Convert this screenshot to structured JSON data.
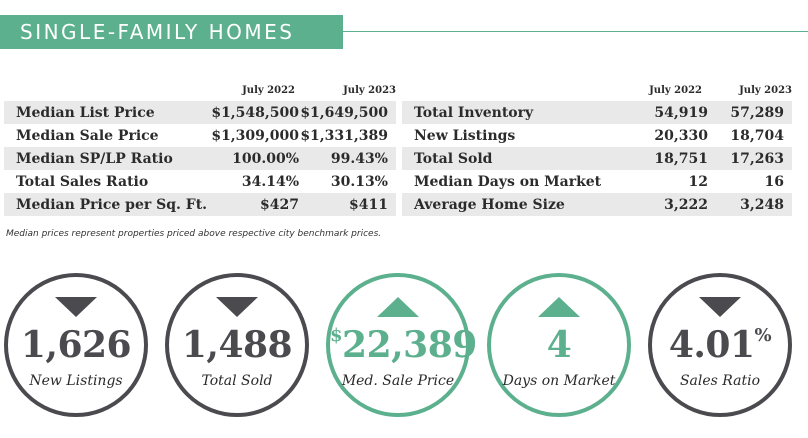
{
  "header": {
    "title": "SINGLE-FAMILY HOMES"
  },
  "left_table": {
    "col1": "July 2022",
    "col2": "July 2023",
    "rows": [
      {
        "label": "Median List Price",
        "v2022": "$1,548,500",
        "v2023": "$1,649,500"
      },
      {
        "label": "Median Sale Price",
        "v2022": "$1,309,000",
        "v2023": "$1,331,389"
      },
      {
        "label": "Median SP/LP Ratio",
        "v2022": "100.00%",
        "v2023": "99.43%"
      },
      {
        "label": "Total Sales Ratio",
        "v2022": "34.14%",
        "v2023": "30.13%"
      },
      {
        "label": "Median Price per Sq. Ft.",
        "v2022": "$427",
        "v2023": "$411"
      }
    ]
  },
  "right_table": {
    "col1": "July 2022",
    "col2": "July 2023",
    "rows": [
      {
        "label": "Total Inventory",
        "v2022": "54,919",
        "v2023": "57,289"
      },
      {
        "label": "New Listings",
        "v2022": "20,330",
        "v2023": "18,704"
      },
      {
        "label": "Total Sold",
        "v2022": "18,751",
        "v2023": "17,263"
      },
      {
        "label": "Median Days on Market",
        "v2022": "12",
        "v2023": "16"
      },
      {
        "label": "Average Home Size",
        "v2022": "3,222",
        "v2023": "3,248"
      }
    ]
  },
  "footnote": "Median prices represent properties priced above respective city benchmark prices.",
  "indicators": [
    {
      "value": "1,626",
      "prefix": "",
      "suffix": "",
      "caption": "New Listings",
      "direction": "down",
      "color": "#4a4a4f"
    },
    {
      "value": "1,488",
      "prefix": "",
      "suffix": "",
      "caption": "Total Sold",
      "direction": "down",
      "color": "#4a4a4f"
    },
    {
      "value": "22,389",
      "prefix": "$",
      "suffix": "",
      "caption": "Med. Sale Price",
      "direction": "up",
      "color": "#5cb08e"
    },
    {
      "value": "4",
      "prefix": "",
      "suffix": "",
      "caption": "Days on Market",
      "direction": "up",
      "color": "#5cb08e"
    },
    {
      "value": "4.01",
      "prefix": "",
      "suffix": "%",
      "caption": "Sales Ratio",
      "direction": "down",
      "color": "#4a4a4f"
    }
  ],
  "colors": {
    "accent": "#5cb08e",
    "dark": "#4a4a4f",
    "row_shade": "#e9e9e9"
  }
}
